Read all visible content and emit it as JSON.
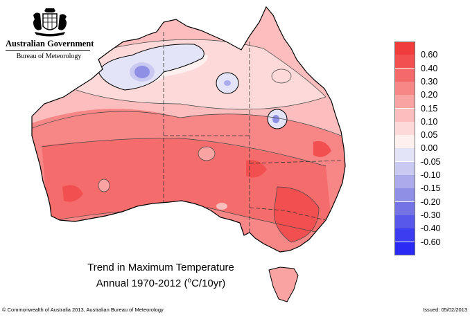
{
  "agency": {
    "government": "Australian Government",
    "bureau": "Bureau of Meteorology"
  },
  "title": {
    "line1": "Trend in Maximum Temperature",
    "line2_prefix": "Annual 1970-2012 (",
    "line2_unit_sup": "o",
    "line2_suffix": "C/10yr)"
  },
  "legend": [
    {
      "label": "0.60",
      "color": "#f03c3c"
    },
    {
      "label": "0.40",
      "color": "#f25050"
    },
    {
      "label": "0.30",
      "color": "#f46a6a"
    },
    {
      "label": "0.20",
      "color": "#f78787"
    },
    {
      "label": "0.15",
      "color": "#f9a3a3"
    },
    {
      "label": "0.10",
      "color": "#fbbdbd"
    },
    {
      "label": "0.05",
      "color": "#fdd9d9"
    },
    {
      "label": "0.00",
      "color": "#fff0f0"
    },
    {
      "label": "-0.05",
      "color": "#e4e4f8"
    },
    {
      "label": "-0.10",
      "color": "#c9c9f2"
    },
    {
      "label": "-0.15",
      "color": "#ababeb"
    },
    {
      "label": "-0.20",
      "color": "#8f8fe6"
    },
    {
      "label": "-0.30",
      "color": "#7373e6"
    },
    {
      "label": "-0.40",
      "color": "#5858ea"
    },
    {
      "label": "-0.60",
      "color": "#3c3cf0"
    },
    {
      "label": "",
      "color": "#2a2af4"
    }
  ],
  "footer": {
    "copyright": "© Commonwealth of Australia 2013, Australian Bureau of Meteorology",
    "issued": "Issued: 05/02/2013"
  }
}
